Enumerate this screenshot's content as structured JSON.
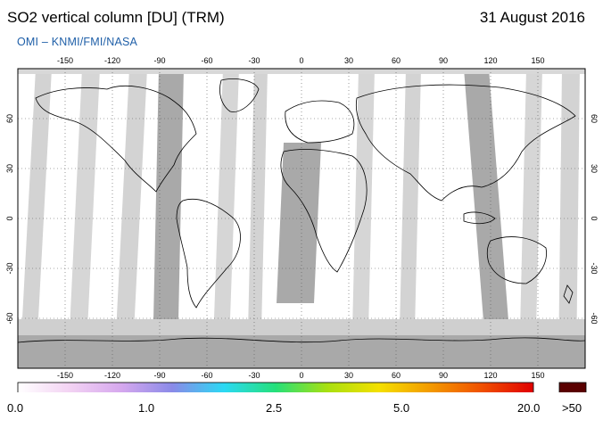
{
  "header": {
    "title": "SO2 vertical column [DU] (TRM)",
    "date": "31 August 2016",
    "credit": "OMI  –  KNMI/FMI/NASA"
  },
  "map": {
    "lon_ticks": [
      "-150",
      "-120",
      "-90",
      "-60",
      "-30",
      "0",
      "30",
      "60",
      "90",
      "120",
      "150"
    ],
    "lat_ticks": [
      "60",
      "30",
      "0",
      "-30",
      "-60"
    ]
  },
  "colorbar": {
    "labels": [
      "0.0",
      "1.0",
      "2.5",
      "5.0",
      "20.0"
    ],
    "overflow_label": ">50",
    "colors": [
      "#ffffff",
      "#f3d3f3",
      "#d6a8ee",
      "#8a8ae8",
      "#2bd9f4",
      "#25e07a",
      "#a8e010",
      "#f4e000",
      "#f39a00",
      "#f05000",
      "#e00000"
    ],
    "overflow_color": "#5a0000"
  }
}
